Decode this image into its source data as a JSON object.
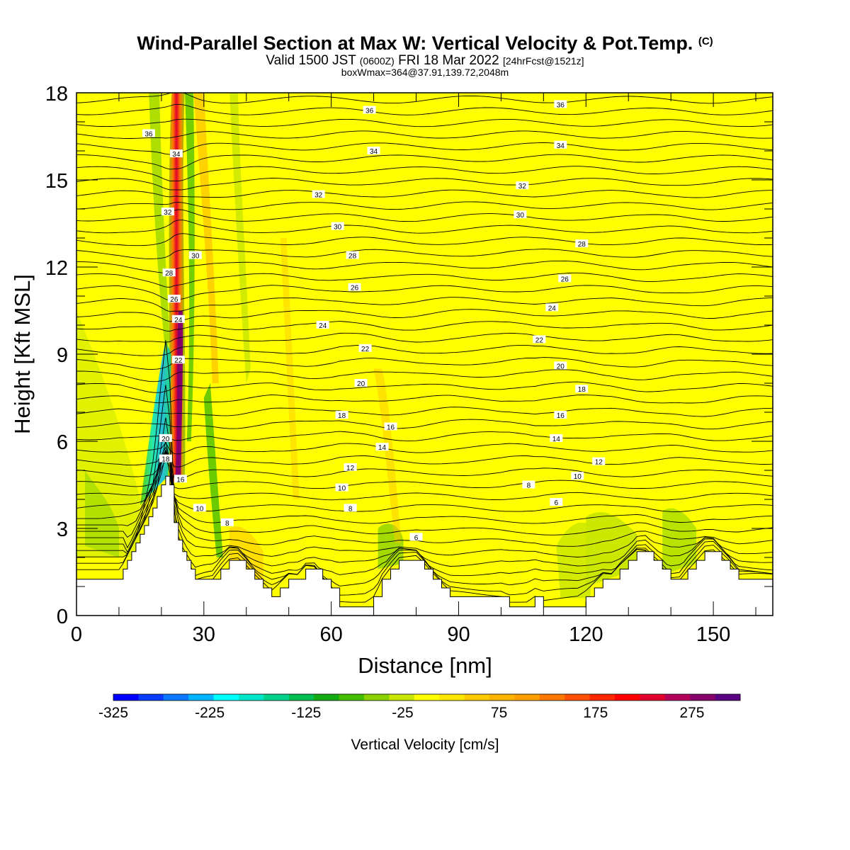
{
  "title": {
    "main": "Wind-Parallel Section at Max W: Vertical Velocity & Pot.Temp.",
    "copyright": "(C)",
    "valid_prefix": "Valid 1500 JST",
    "valid_utc": "(0600Z)",
    "valid_date": "FRI 18 Mar 2022",
    "forecast": "[24hrFcst@1521z]",
    "box_info": "boxWmax=364@37.91,139.72,2048m"
  },
  "chart_data": {
    "type": "heatmap",
    "xlabel": "Distance [nm]",
    "ylabel": "Height [Kft MSL]",
    "xlim": [
      0,
      164
    ],
    "ylim": [
      0,
      18
    ],
    "x_ticks": [
      0,
      30,
      60,
      90,
      120,
      150
    ],
    "y_ticks": [
      0,
      3,
      6,
      9,
      12,
      15,
      18
    ],
    "colorbar": {
      "label": "Vertical Velocity [cm/s]",
      "range": [
        -325,
        325
      ],
      "tick_labels": [
        -325,
        -225,
        -125,
        -25,
        75,
        175,
        275
      ],
      "colors": [
        "#0000ff",
        "#0a3cff",
        "#0a78ff",
        "#00b4ff",
        "#00ffff",
        "#00e6c8",
        "#00d28c",
        "#00be50",
        "#14aa14",
        "#46be00",
        "#8cd200",
        "#c8e600",
        "#ffff00",
        "#ffe600",
        "#ffc800",
        "#ffb400",
        "#ffa000",
        "#ff7800",
        "#ff5000",
        "#ff2800",
        "#ff0000",
        "#e1002d",
        "#b4005a",
        "#870069",
        "#5a0082"
      ]
    },
    "theta_contour_labels": [
      {
        "x": 17,
        "y": 16.6,
        "v": "36"
      },
      {
        "x": 69,
        "y": 17.4,
        "v": "36"
      },
      {
        "x": 114,
        "y": 17.6,
        "v": "36"
      },
      {
        "x": 23.5,
        "y": 15.9,
        "v": "34"
      },
      {
        "x": 70,
        "y": 16.0,
        "v": "34"
      },
      {
        "x": 114,
        "y": 16.2,
        "v": "34"
      },
      {
        "x": 57,
        "y": 14.5,
        "v": "32"
      },
      {
        "x": 105,
        "y": 14.8,
        "v": "32"
      },
      {
        "x": 21.5,
        "y": 13.9,
        "v": "32"
      },
      {
        "x": 61.5,
        "y": 13.4,
        "v": "30"
      },
      {
        "x": 104.5,
        "y": 13.8,
        "v": "30"
      },
      {
        "x": 28,
        "y": 12.4,
        "v": "30"
      },
      {
        "x": 65,
        "y": 12.4,
        "v": "28"
      },
      {
        "x": 119,
        "y": 12.8,
        "v": "28"
      },
      {
        "x": 21.8,
        "y": 11.8,
        "v": "28"
      },
      {
        "x": 65.5,
        "y": 11.3,
        "v": "26"
      },
      {
        "x": 115,
        "y": 11.6,
        "v": "26"
      },
      {
        "x": 23,
        "y": 10.9,
        "v": "26"
      },
      {
        "x": 24,
        "y": 10.2,
        "v": "24"
      },
      {
        "x": 58,
        "y": 10.0,
        "v": "24"
      },
      {
        "x": 112,
        "y": 10.6,
        "v": "24"
      },
      {
        "x": 68,
        "y": 9.2,
        "v": "22"
      },
      {
        "x": 109,
        "y": 9.5,
        "v": "22"
      },
      {
        "x": 24,
        "y": 8.8,
        "v": "22"
      },
      {
        "x": 67,
        "y": 8.0,
        "v": "20"
      },
      {
        "x": 114,
        "y": 8.6,
        "v": "20"
      },
      {
        "x": 21,
        "y": 6.1,
        "v": "20"
      },
      {
        "x": 62.5,
        "y": 6.9,
        "v": "18"
      },
      {
        "x": 119,
        "y": 7.8,
        "v": "18"
      },
      {
        "x": 21,
        "y": 5.4,
        "v": "18"
      },
      {
        "x": 74,
        "y": 6.5,
        "v": "16"
      },
      {
        "x": 114,
        "y": 6.9,
        "v": "16"
      },
      {
        "x": 24.5,
        "y": 4.7,
        "v": "16"
      },
      {
        "x": 72,
        "y": 5.8,
        "v": "14"
      },
      {
        "x": 113,
        "y": 6.1,
        "v": "14"
      },
      {
        "x": 64.5,
        "y": 5.1,
        "v": "12"
      },
      {
        "x": 123,
        "y": 5.3,
        "v": "12"
      },
      {
        "x": 62.5,
        "y": 4.4,
        "v": "10"
      },
      {
        "x": 118,
        "y": 4.8,
        "v": "10"
      },
      {
        "x": 29,
        "y": 3.7,
        "v": "10"
      },
      {
        "x": 64.5,
        "y": 3.7,
        "v": "8"
      },
      {
        "x": 106.5,
        "y": 4.5,
        "v": "8"
      },
      {
        "x": 35.5,
        "y": 3.2,
        "v": "8"
      },
      {
        "x": 113,
        "y": 3.9,
        "v": "6"
      },
      {
        "x": 80,
        "y": 2.7,
        "v": "6"
      }
    ],
    "terrain": [
      [
        0,
        1.25
      ],
      [
        8,
        1.25
      ],
      [
        10,
        1.25
      ],
      [
        11,
        1.6
      ],
      [
        12,
        1.9
      ],
      [
        13,
        2.2
      ],
      [
        14,
        2.5
      ],
      [
        15,
        2.8
      ],
      [
        16,
        3.1
      ],
      [
        17,
        3.4
      ],
      [
        18,
        3.7
      ],
      [
        19,
        4.1
      ],
      [
        20,
        4.5
      ],
      [
        21,
        4.8
      ],
      [
        22,
        4.5
      ],
      [
        23,
        3.2
      ],
      [
        24,
        2.6
      ],
      [
        25,
        2.2
      ],
      [
        26,
        1.9
      ],
      [
        27,
        1.6
      ],
      [
        28,
        1.25
      ],
      [
        30,
        1.25
      ],
      [
        32,
        1.25
      ],
      [
        34,
        1.6
      ],
      [
        36,
        1.9
      ],
      [
        38,
        1.9
      ],
      [
        40,
        1.6
      ],
      [
        42,
        1.25
      ],
      [
        44,
        0.95
      ],
      [
        46,
        0.65
      ],
      [
        48,
        0.95
      ],
      [
        50,
        1.25
      ],
      [
        52,
        1.25
      ],
      [
        54,
        1.6
      ],
      [
        56,
        1.6
      ],
      [
        58,
        1.25
      ],
      [
        60,
        0.95
      ],
      [
        62,
        0.3
      ],
      [
        64,
        0.3
      ],
      [
        66,
        0.3
      ],
      [
        68,
        0.3
      ],
      [
        70,
        0.65
      ],
      [
        72,
        1.25
      ],
      [
        74,
        1.6
      ],
      [
        76,
        1.9
      ],
      [
        78,
        1.9
      ],
      [
        80,
        1.9
      ],
      [
        82,
        1.6
      ],
      [
        84,
        1.25
      ],
      [
        86,
        0.95
      ],
      [
        88,
        0.65
      ],
      [
        90,
        0.65
      ],
      [
        95,
        0.65
      ],
      [
        100,
        0.65
      ],
      [
        102,
        0.3
      ],
      [
        106,
        0.3
      ],
      [
        108,
        0.65
      ],
      [
        110,
        0.3
      ],
      [
        114,
        0.3
      ],
      [
        118,
        0.3
      ],
      [
        120,
        0.65
      ],
      [
        122,
        0.95
      ],
      [
        124,
        1.25
      ],
      [
        126,
        1.25
      ],
      [
        128,
        1.6
      ],
      [
        130,
        1.9
      ],
      [
        132,
        2.2
      ],
      [
        134,
        2.2
      ],
      [
        136,
        1.9
      ],
      [
        138,
        1.6
      ],
      [
        140,
        1.25
      ],
      [
        142,
        1.25
      ],
      [
        144,
        1.6
      ],
      [
        146,
        1.9
      ],
      [
        148,
        2.2
      ],
      [
        150,
        2.2
      ],
      [
        152,
        1.9
      ],
      [
        154,
        1.6
      ],
      [
        156,
        1.25
      ],
      [
        158,
        1.25
      ],
      [
        160,
        1.25
      ],
      [
        164,
        1.25
      ]
    ]
  }
}
